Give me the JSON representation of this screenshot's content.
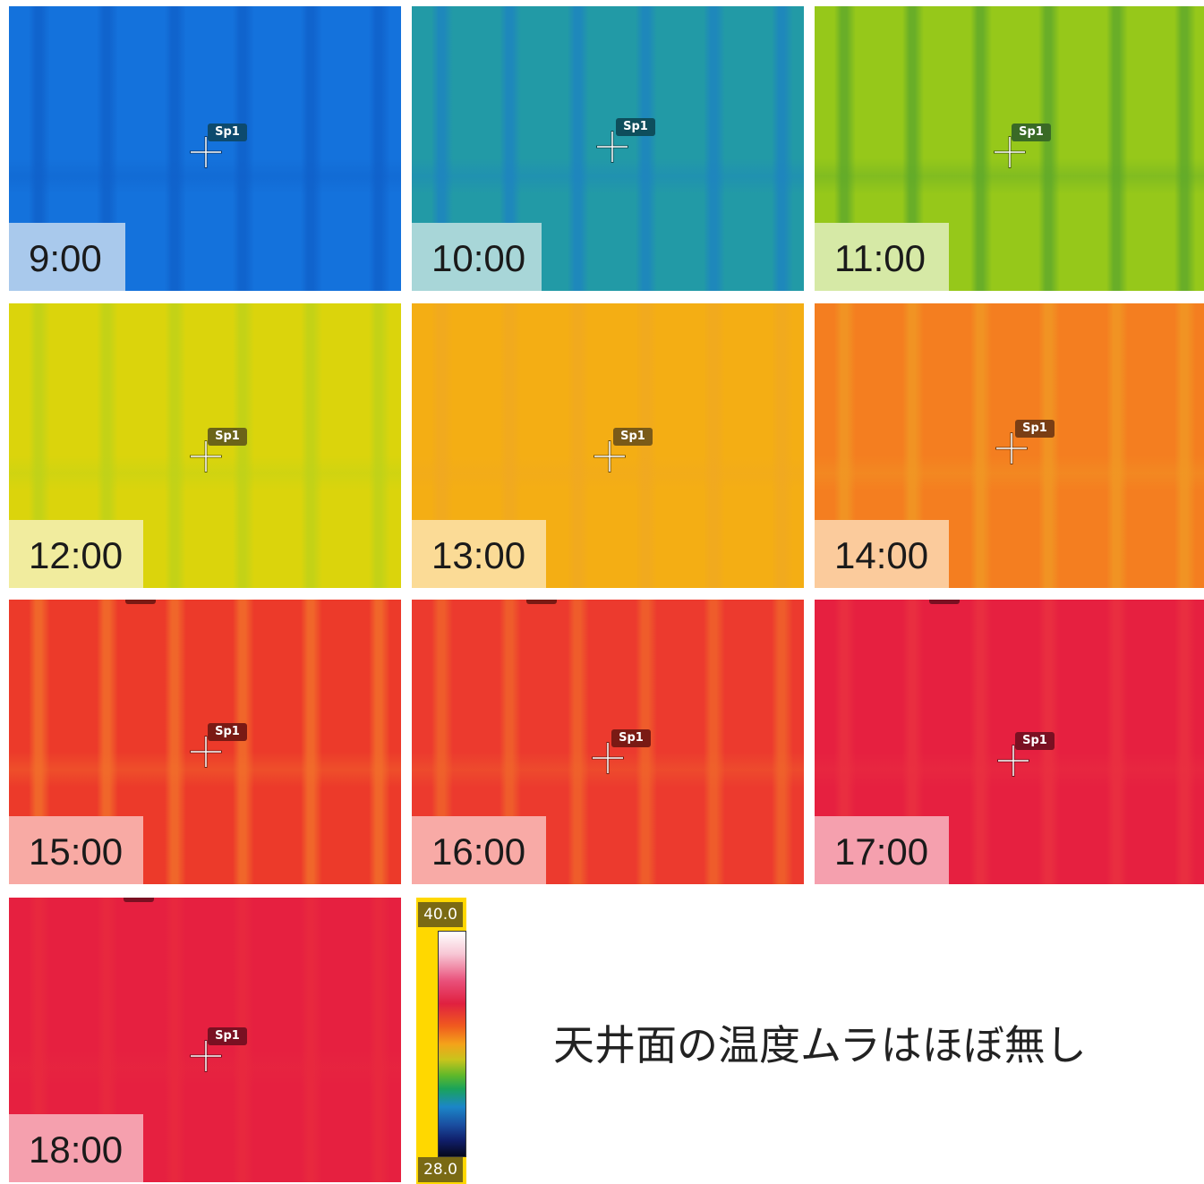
{
  "panels": [
    {
      "time": "9:00",
      "spot": "Sp1",
      "base": "#1472dc",
      "stripe": "#0f5fc8",
      "label_bg": "#a9c9ec",
      "spot_bg": "#0d4a6e"
    },
    {
      "time": "10:00",
      "spot": "Sp1",
      "base": "#229aa6",
      "stripe": "#1d82c2",
      "label_bg": "#a8d6d8",
      "spot_bg": "#0e4e5c"
    },
    {
      "time": "11:00",
      "spot": "Sp1",
      "base": "#96c81a",
      "stripe": "#5aa62c",
      "label_bg": "#d6e9a6",
      "spot_bg": "#3a6a26"
    },
    {
      "time": "12:00",
      "spot": "Sp1",
      "base": "#dbd40c",
      "stripe": "#bcd21a",
      "label_bg": "#f1ec9e",
      "spot_bg": "#6b6418"
    },
    {
      "time": "13:00",
      "spot": "Sp1",
      "base": "#f4ae14",
      "stripe": "#f0a822",
      "label_bg": "#fbdb96",
      "spot_bg": "#7a5a18"
    },
    {
      "time": "14:00",
      "spot": "Sp1",
      "base": "#f47e20",
      "stripe": "#f09a24",
      "label_bg": "#fbcb9c",
      "spot_bg": "#7a3e14"
    },
    {
      "time": "15:00",
      "spot": "Sp1",
      "base": "#ec3a2a",
      "stripe": "#f2742a",
      "label_bg": "#f8aaa4",
      "spot_bg": "#7a1a14"
    },
    {
      "time": "16:00",
      "spot": "Sp1",
      "base": "#ec3a2e",
      "stripe": "#f0682a",
      "label_bg": "#f8aaa6",
      "spot_bg": "#7a1a14"
    },
    {
      "time": "17:00",
      "spot": "Sp1",
      "base": "#e62040",
      "stripe": "#ea3240",
      "label_bg": "#f5a0ae",
      "spot_bg": "#7a1022"
    },
    {
      "time": "18:00",
      "spot": "Sp1",
      "base": "#e62040",
      "stripe": "#e82a3e",
      "label_bg": "#f5a0ae",
      "spot_bg": "#7a1022"
    }
  ],
  "legend": {
    "max": "40.0",
    "min": "28.0"
  },
  "caption": "天井面の温度ムラはほぼ無し"
}
